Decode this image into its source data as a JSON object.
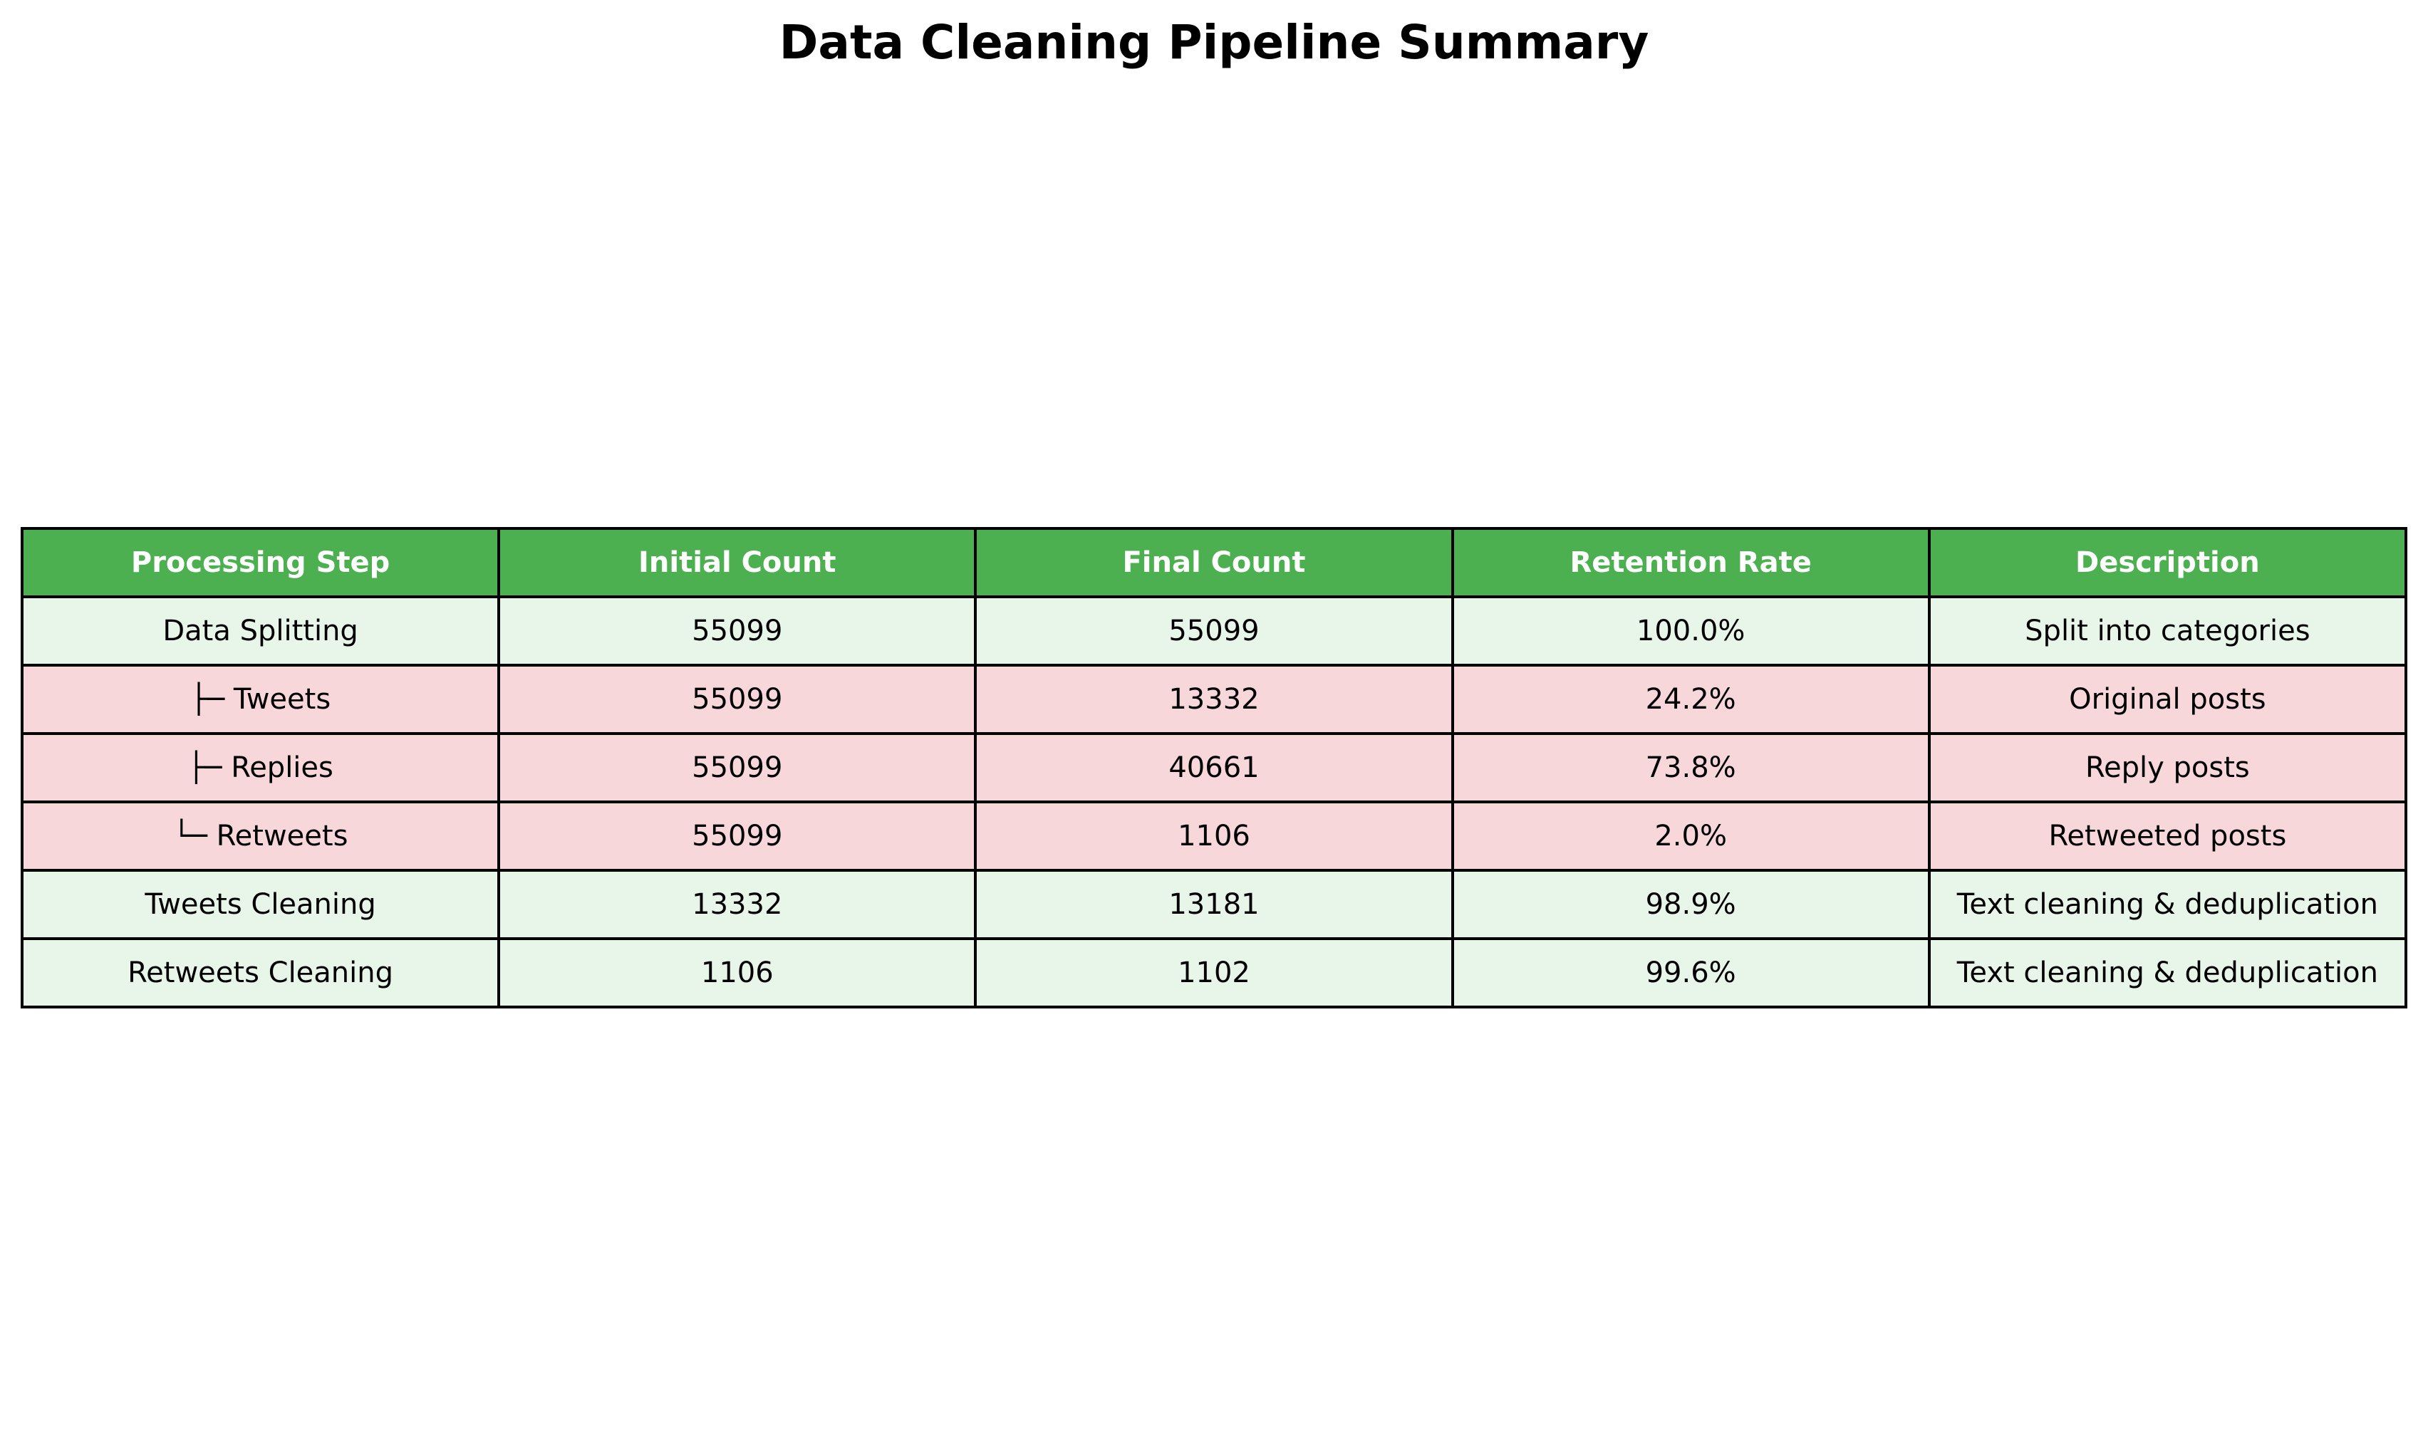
{
  "chart_data": {
    "type": "table",
    "title": "Data Cleaning Pipeline Summary",
    "columns": [
      "Processing Step",
      "Initial Count",
      "Final Count",
      "Retention Rate",
      "Description"
    ],
    "rows": [
      {
        "step": "Data Splitting",
        "initial": "55099",
        "final": "55099",
        "retention": "100.0%",
        "description": "Split into categories",
        "kind": "main"
      },
      {
        "step": "├─ Tweets",
        "initial": "55099",
        "final": "13332",
        "retention": "24.2%",
        "description": "Original posts",
        "kind": "sub"
      },
      {
        "step": "├─ Replies",
        "initial": "55099",
        "final": "40661",
        "retention": "73.8%",
        "description": "Reply posts",
        "kind": "sub"
      },
      {
        "step": "└─ Retweets",
        "initial": "55099",
        "final": "1106",
        "retention": "2.0%",
        "description": "Retweeted posts",
        "kind": "sub"
      },
      {
        "step": "Tweets Cleaning",
        "initial": "13332",
        "final": "13181",
        "retention": "98.9%",
        "description": "Text cleaning & deduplication",
        "kind": "main"
      },
      {
        "step": "Retweets Cleaning",
        "initial": "1106",
        "final": "1102",
        "retention": "99.6%",
        "description": "Text cleaning & deduplication",
        "kind": "main"
      }
    ]
  },
  "colors": {
    "header_bg": "#4caf50",
    "header_text": "#ffffff",
    "main_row_bg": "#e8f5e9",
    "sub_row_bg": "#f8d7da",
    "border": "#000000"
  }
}
